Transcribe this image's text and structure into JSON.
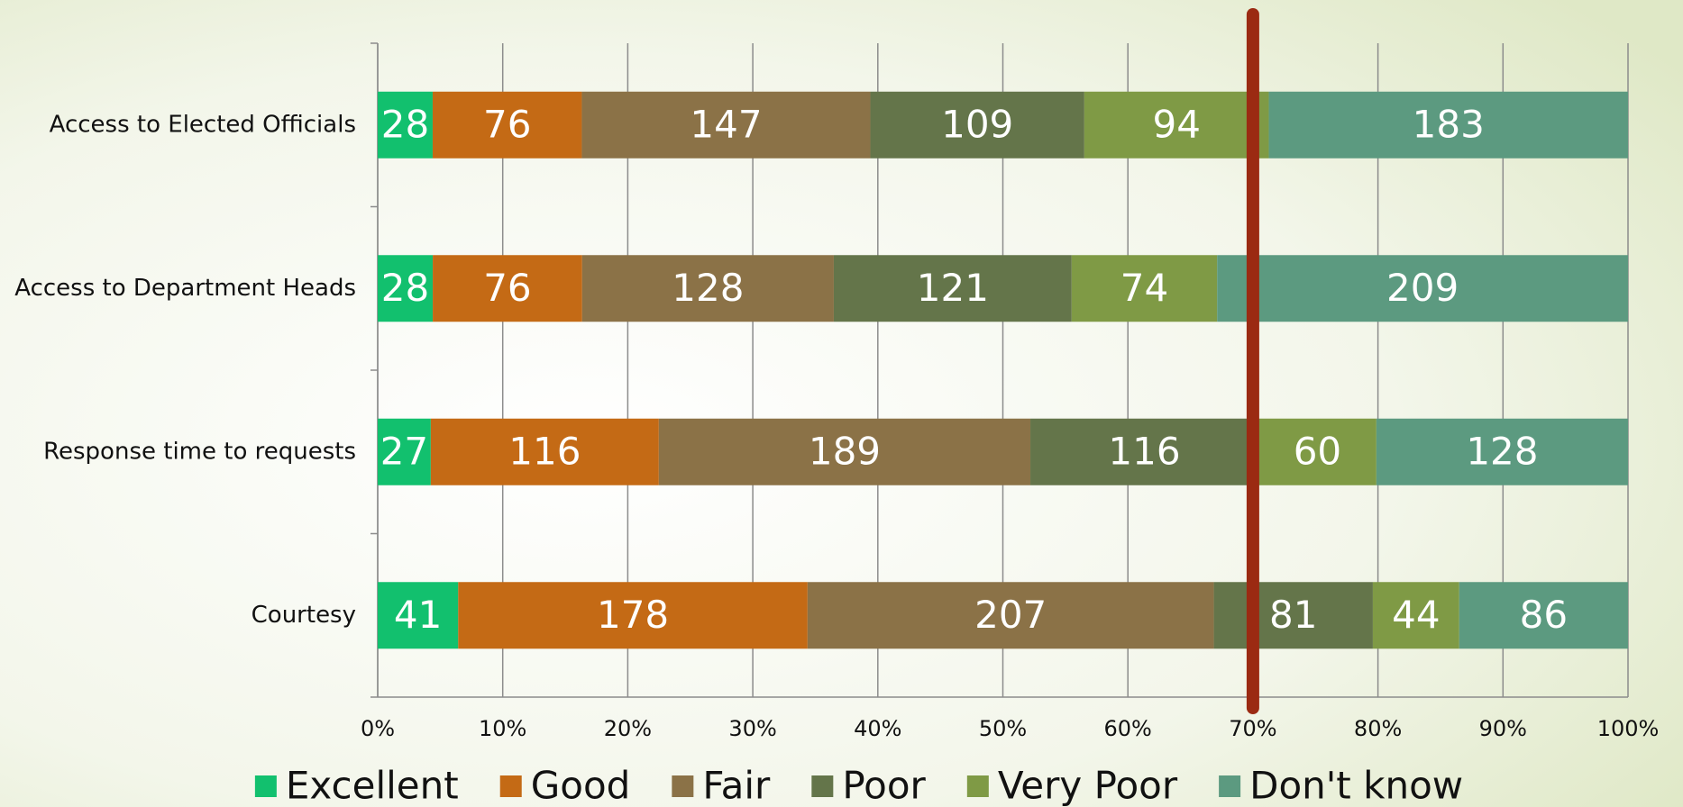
{
  "chart_data": {
    "type": "bar",
    "orientation": "horizontal",
    "stacking": "percent",
    "categories": [
      "Access to Elected Officials",
      "Access to Department Heads",
      "Response time to requests",
      "Courtesy"
    ],
    "series": [
      {
        "name": "Excellent",
        "color": "#12c06e",
        "values": [
          28,
          28,
          27,
          41
        ]
      },
      {
        "name": "Good",
        "color": "#c46a15",
        "values": [
          76,
          76,
          116,
          178
        ]
      },
      {
        "name": "Fair",
        "color": "#8b7247",
        "values": [
          147,
          128,
          189,
          207
        ]
      },
      {
        "name": "Poor",
        "color": "#64754a",
        "values": [
          109,
          121,
          116,
          81
        ]
      },
      {
        "name": "Very Poor",
        "color": "#7f9a45",
        "values": [
          94,
          74,
          60,
          44
        ]
      },
      {
        "name": "Don't know",
        "color": "#5c9a80",
        "values": [
          183,
          209,
          128,
          86
        ]
      }
    ],
    "xlim": [
      0,
      100
    ],
    "xticks": [
      {
        "value": 0,
        "label": "0%"
      },
      {
        "value": 10,
        "label": "10%"
      },
      {
        "value": 20,
        "label": "20%"
      },
      {
        "value": 30,
        "label": "30%"
      },
      {
        "value": 40,
        "label": "40%"
      },
      {
        "value": 50,
        "label": "50%"
      },
      {
        "value": 60,
        "label": "60%"
      },
      {
        "value": 70,
        "label": "70%"
      },
      {
        "value": 80,
        "label": "80%"
      },
      {
        "value": 90,
        "label": "90%"
      },
      {
        "value": 100,
        "label": "100%"
      }
    ],
    "grid": true,
    "legend": "bottom",
    "reference_line": {
      "value": 70,
      "color": "#9b2a12"
    }
  }
}
